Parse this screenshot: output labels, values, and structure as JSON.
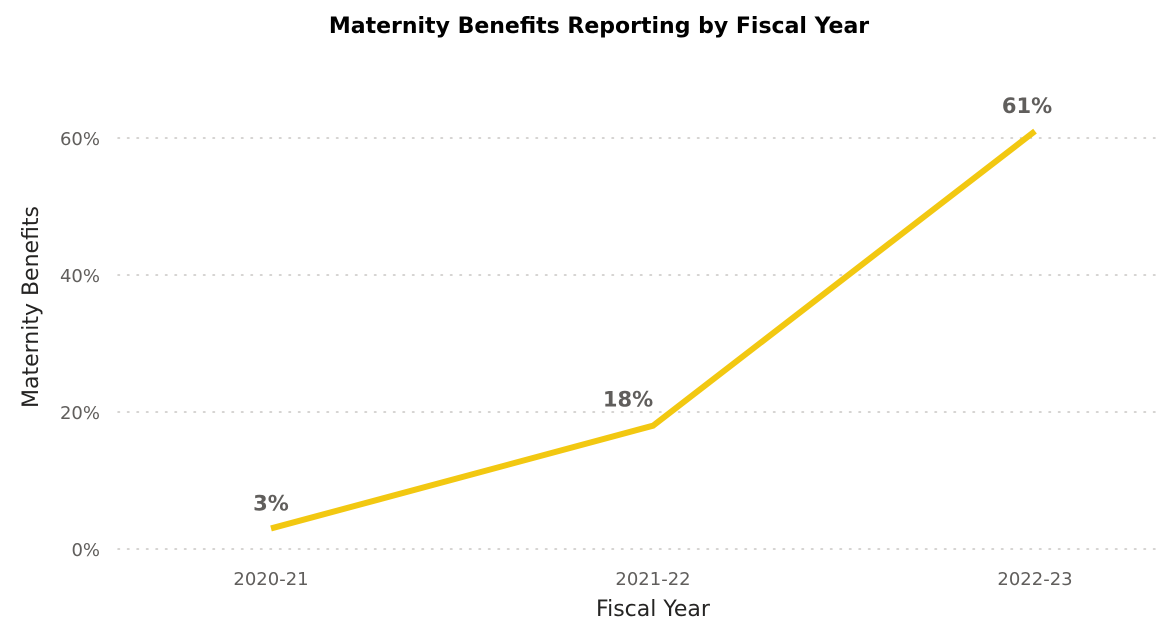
{
  "chart_data": {
    "type": "line",
    "title": "Maternity Benefits Reporting by Fiscal Year",
    "xlabel": "Fiscal Year",
    "ylabel": "Maternity Benefits",
    "categories": [
      "2020-21",
      "2021-22",
      "2022-23"
    ],
    "series": [
      {
        "values": [
          3,
          18,
          61
        ],
        "data_labels": [
          "3%",
          "18%",
          "61%"
        ],
        "color": "#f2c811"
      }
    ],
    "y_ticks": [
      0,
      20,
      40,
      60
    ],
    "y_tick_labels": [
      "0%",
      "20%",
      "40%",
      "60%"
    ],
    "ylim": [
      0,
      60
    ],
    "grid": true,
    "legend": "none"
  }
}
